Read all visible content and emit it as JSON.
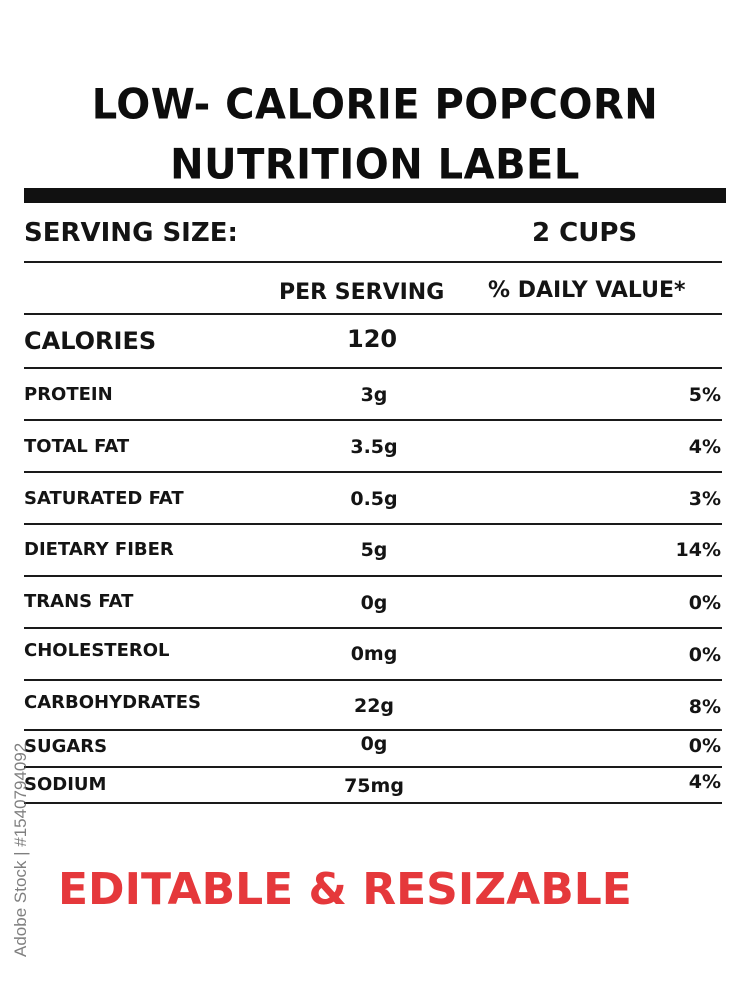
{
  "title": {
    "line1": "LOW- CALORIE POPCORN",
    "line2": "NUTRITION LABEL"
  },
  "serving": {
    "label": "SERVING SIZE:",
    "value": "2 CUPS"
  },
  "columns": {
    "per_serving": "PER SERVING",
    "daily_value": "% DAILY VALUE*"
  },
  "calories": {
    "label": "CALORIES",
    "value": "120"
  },
  "nutrients": [
    {
      "name": "PROTEIN",
      "amount": "3g",
      "dv": "5%"
    },
    {
      "name": "TOTAL FAT",
      "amount": "3.5g",
      "dv": "4%"
    },
    {
      "name": "SATURATED FAT",
      "amount": "0.5g",
      "dv": "3%"
    },
    {
      "name": "DIETARY FIBER",
      "amount": "5g",
      "dv": "14%"
    },
    {
      "name": "TRANS FAT",
      "amount": "0g",
      "dv": "0%"
    },
    {
      "name": "CHOLESTEROL",
      "amount": "0mg",
      "dv": "0%"
    },
    {
      "name": "CARBOHYDRATES",
      "amount": "22g",
      "dv": "8%"
    },
    {
      "name": "SUGARS",
      "amount": "0g",
      "dv": "0%"
    },
    {
      "name": "SODIUM",
      "amount": "75mg",
      "dv": "4%"
    }
  ],
  "promo": {
    "text": "EDITABLE & RESIZABLE",
    "color": "#e5383b"
  },
  "stock_id": "Adobe Stock | #1540794092"
}
